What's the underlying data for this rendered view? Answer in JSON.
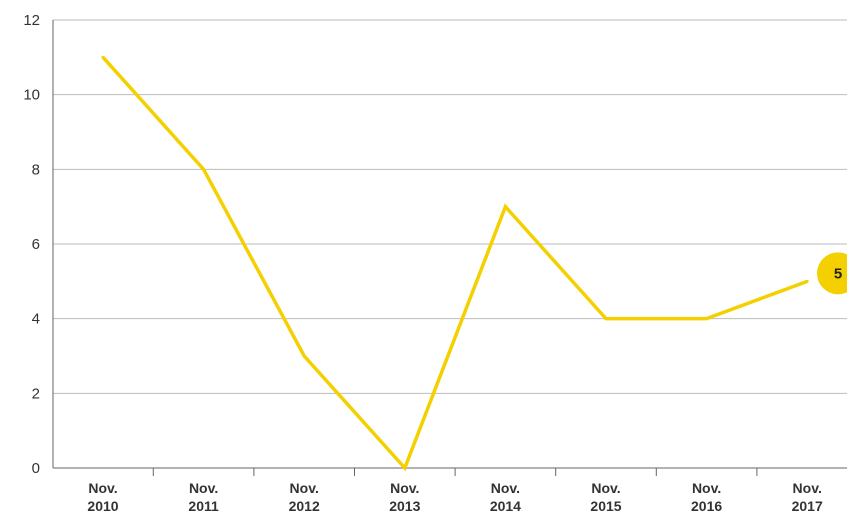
{
  "chart_data": {
    "type": "line",
    "categories": [
      "Nov. 2010",
      "Nov. 2011",
      "Nov. 2012",
      "Nov. 2013",
      "Nov. 2014",
      "Nov. 2015",
      "Nov. 2016",
      "Nov. 2017"
    ],
    "category_lines": [
      [
        "Nov.",
        "2010"
      ],
      [
        "Nov.",
        "2011"
      ],
      [
        "Nov.",
        "2012"
      ],
      [
        "Nov.",
        "2013"
      ],
      [
        "Nov.",
        "2014"
      ],
      [
        "Nov.",
        "2015"
      ],
      [
        "Nov.",
        "2016"
      ],
      [
        "Nov.",
        "2017"
      ]
    ],
    "series": [
      {
        "values": [
          11,
          8,
          3,
          0,
          7,
          4,
          4,
          5
        ],
        "color": "#f5d000"
      }
    ],
    "end_label": "5",
    "yticks": [
      "0",
      "2",
      "4",
      "6",
      "8",
      "10",
      "12"
    ],
    "ylim": [
      0,
      12
    ],
    "title": "",
    "xlabel": "",
    "ylabel": "",
    "grid": "horizontal",
    "colors": {
      "line": "#f5d000",
      "grid": "#bbbbbb",
      "axis": "#666666",
      "text": "#333333"
    }
  }
}
